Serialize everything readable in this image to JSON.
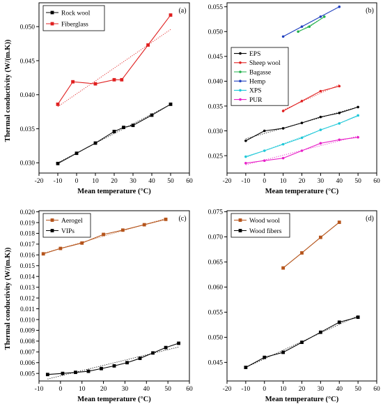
{
  "chart_data": [
    {
      "type": "line",
      "panel_label": "(a)",
      "xlabel": "Mean temperature (°C)",
      "ylabel": "Thermal conductivity (W/(m.K))",
      "xlim": [
        -20,
        60
      ],
      "ylim": [
        0.0285,
        0.0535
      ],
      "xticks": [
        -20,
        -10,
        0,
        10,
        20,
        30,
        40,
        50,
        60
      ],
      "yticks": [
        0.03,
        0.035,
        0.04,
        0.045,
        0.05
      ],
      "ytick_labels": [
        "0.030",
        "0.035",
        "0.040",
        "0.045",
        "0.050"
      ],
      "legend_position": "top-left",
      "series": [
        {
          "name": "Rock wool",
          "color": "#000000",
          "marker": "square",
          "x": [
            -10,
            0,
            10,
            20,
            25,
            30,
            40,
            50
          ],
          "y": [
            0.0299,
            0.0314,
            0.0329,
            0.0346,
            0.0352,
            0.0355,
            0.037,
            0.0386
          ]
        },
        {
          "name": "Fiberglass",
          "color": "#e02020",
          "marker": "square",
          "x": [
            -10,
            -2,
            10,
            20,
            24,
            38,
            50
          ],
          "y": [
            0.0386,
            0.0419,
            0.0416,
            0.0422,
            0.0422,
            0.0473,
            0.0517
          ]
        }
      ]
    },
    {
      "type": "line",
      "panel_label": "(b)",
      "xlabel": "Mean temperature (°C)",
      "ylabel": "",
      "xlim": [
        -20,
        60
      ],
      "ylim": [
        0.0215,
        0.0558
      ],
      "xticks": [
        -20,
        -10,
        0,
        10,
        20,
        30,
        40,
        50,
        60
      ],
      "yticks": [
        0.025,
        0.03,
        0.035,
        0.04,
        0.045,
        0.05,
        0.055
      ],
      "ytick_labels": [
        "0.025",
        "0.030",
        "0.035",
        "0.040",
        "0.045",
        "0.050",
        "0.055"
      ],
      "legend_position": "center-left",
      "series": [
        {
          "name": "EPS",
          "color": "#000000",
          "marker": "dot",
          "x": [
            -10,
            0,
            10,
            20,
            30,
            40,
            50
          ],
          "y": [
            0.028,
            0.03,
            0.0305,
            0.0316,
            0.0328,
            0.0336,
            0.0348
          ]
        },
        {
          "name": "Sheep wool",
          "color": "#e02020",
          "marker": "dot",
          "x": [
            10,
            20,
            30,
            40
          ],
          "y": [
            0.034,
            0.036,
            0.038,
            0.039
          ]
        },
        {
          "name": "Bagasse",
          "color": "#22b04b",
          "marker": "dot",
          "x": [
            18,
            24,
            32
          ],
          "y": [
            0.05,
            0.051,
            0.053
          ]
        },
        {
          "name": "Hemp",
          "color": "#1f3fbf",
          "marker": "dot",
          "x": [
            10,
            20,
            30,
            40
          ],
          "y": [
            0.049,
            0.051,
            0.053,
            0.055
          ]
        },
        {
          "name": "XPS",
          "color": "#1fc8d8",
          "marker": "dot",
          "x": [
            -10,
            0,
            10,
            20,
            30,
            40,
            50
          ],
          "y": [
            0.0248,
            0.026,
            0.0273,
            0.0286,
            0.0302,
            0.0315,
            0.0331
          ]
        },
        {
          "name": "PUR",
          "color": "#e820c8",
          "marker": "dot",
          "x": [
            -10,
            0,
            10,
            20,
            30,
            40,
            50
          ],
          "y": [
            0.0235,
            0.024,
            0.0245,
            0.026,
            0.0275,
            0.0282,
            0.0287
          ]
        }
      ]
    },
    {
      "type": "line",
      "panel_label": "(c)",
      "xlabel": "Mean temperature (°C)",
      "ylabel": "Thermal conductivity (W/(m.K))",
      "xlim": [
        -10,
        60
      ],
      "ylim": [
        0.0043,
        0.0201
      ],
      "xticks": [
        -10,
        0,
        10,
        20,
        30,
        40,
        50,
        60
      ],
      "yticks": [
        0.005,
        0.006,
        0.007,
        0.008,
        0.009,
        0.01,
        0.011,
        0.012,
        0.013,
        0.014,
        0.015,
        0.016,
        0.017,
        0.018,
        0.019,
        0.02
      ],
      "ytick_labels": [
        "0.005",
        "0.006",
        "0.007",
        "0.008",
        "0.009",
        "0.010",
        "0.011",
        "0.012",
        "0.013",
        "0.014",
        "0.015",
        "0.016",
        "0.017",
        "0.018",
        "0.019",
        "0.020"
      ],
      "legend_position": "top-left",
      "series": [
        {
          "name": "Aerogel",
          "color": "#b5541b",
          "marker": "square",
          "x": [
            -8,
            0,
            10,
            20,
            29,
            39,
            49
          ],
          "y": [
            0.0161,
            0.0166,
            0.0171,
            0.0179,
            0.0183,
            0.0188,
            0.0193
          ]
        },
        {
          "name": "VIPs",
          "color": "#000000",
          "marker": "square",
          "x": [
            -6,
            1,
            7,
            13,
            19,
            25,
            31,
            37,
            43,
            49,
            55
          ],
          "y": [
            0.0049,
            0.005,
            0.0051,
            0.0052,
            0.00545,
            0.0057,
            0.006,
            0.0064,
            0.0069,
            0.0074,
            0.0078
          ]
        }
      ]
    },
    {
      "type": "line",
      "panel_label": "(d)",
      "xlabel": "Mean temperature (°C)",
      "ylabel": "",
      "xlim": [
        -20,
        60
      ],
      "ylim": [
        0.0413,
        0.0752
      ],
      "xticks": [
        -20,
        -10,
        0,
        10,
        20,
        30,
        40,
        50,
        60
      ],
      "yticks": [
        0.045,
        0.05,
        0.055,
        0.06,
        0.065,
        0.07,
        0.075
      ],
      "ytick_labels": [
        "0.045",
        "0.050",
        "0.055",
        "0.060",
        "0.065",
        "0.070",
        "0.075"
      ],
      "legend_position": "top-left",
      "series": [
        {
          "name": "Wood wool",
          "color": "#b5541b",
          "marker": "square",
          "x": [
            10,
            20,
            30,
            40
          ],
          "y": [
            0.0638,
            0.0668,
            0.0699,
            0.0729
          ]
        },
        {
          "name": "Wood fibers",
          "color": "#000000",
          "marker": "square",
          "x": [
            -10,
            0,
            10,
            20,
            30,
            40,
            50
          ],
          "y": [
            0.044,
            0.046,
            0.047,
            0.049,
            0.051,
            0.053,
            0.054
          ]
        }
      ]
    }
  ]
}
